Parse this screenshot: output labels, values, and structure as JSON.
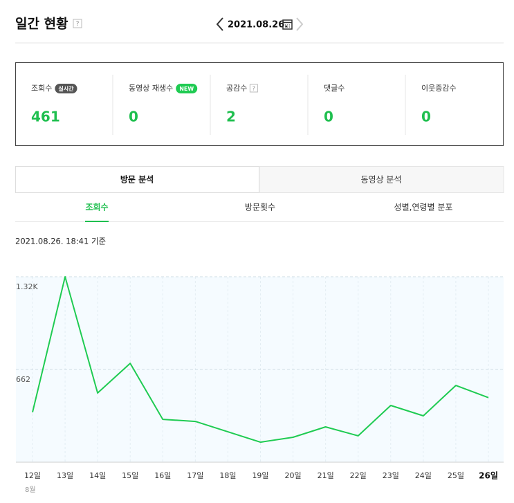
{
  "header": {
    "title": "일간 현황",
    "help": "?",
    "date": "2021.08.26."
  },
  "stats": [
    {
      "label": "조회수",
      "badge": "실시간",
      "value": 461
    },
    {
      "label": "동영상 재생수",
      "badge": "NEW",
      "value": 0
    },
    {
      "label": "공감수",
      "badge": "?",
      "value": 2
    },
    {
      "label": "댓글수",
      "value": 0
    },
    {
      "label": "이웃증감수",
      "value": 0
    }
  ],
  "tabs": [
    "방문 분석",
    "동영상 분석"
  ],
  "subtabs": [
    "조회수",
    "방문횟수",
    "성별,연령별 분포"
  ],
  "timestamp": "2021.08.26. 18:41 기준",
  "chart_data": {
    "type": "line",
    "categories": [
      "12일",
      "13일",
      "14일",
      "15일",
      "16일",
      "17일",
      "18일",
      "19일",
      "20일",
      "21일",
      "22일",
      "23일",
      "24일",
      "25일",
      "26일"
    ],
    "x_group_label": "8월",
    "values": [
      356,
      1324,
      494,
      706,
      306,
      291,
      217,
      143,
      178,
      252,
      188,
      405,
      331,
      548,
      461
    ],
    "color": "#1fcb52",
    "ylim": [
      0,
      1324
    ],
    "yticks": [
      {
        "value": 1324,
        "label": "1.32K"
      },
      662
    ],
    "grid": true
  }
}
